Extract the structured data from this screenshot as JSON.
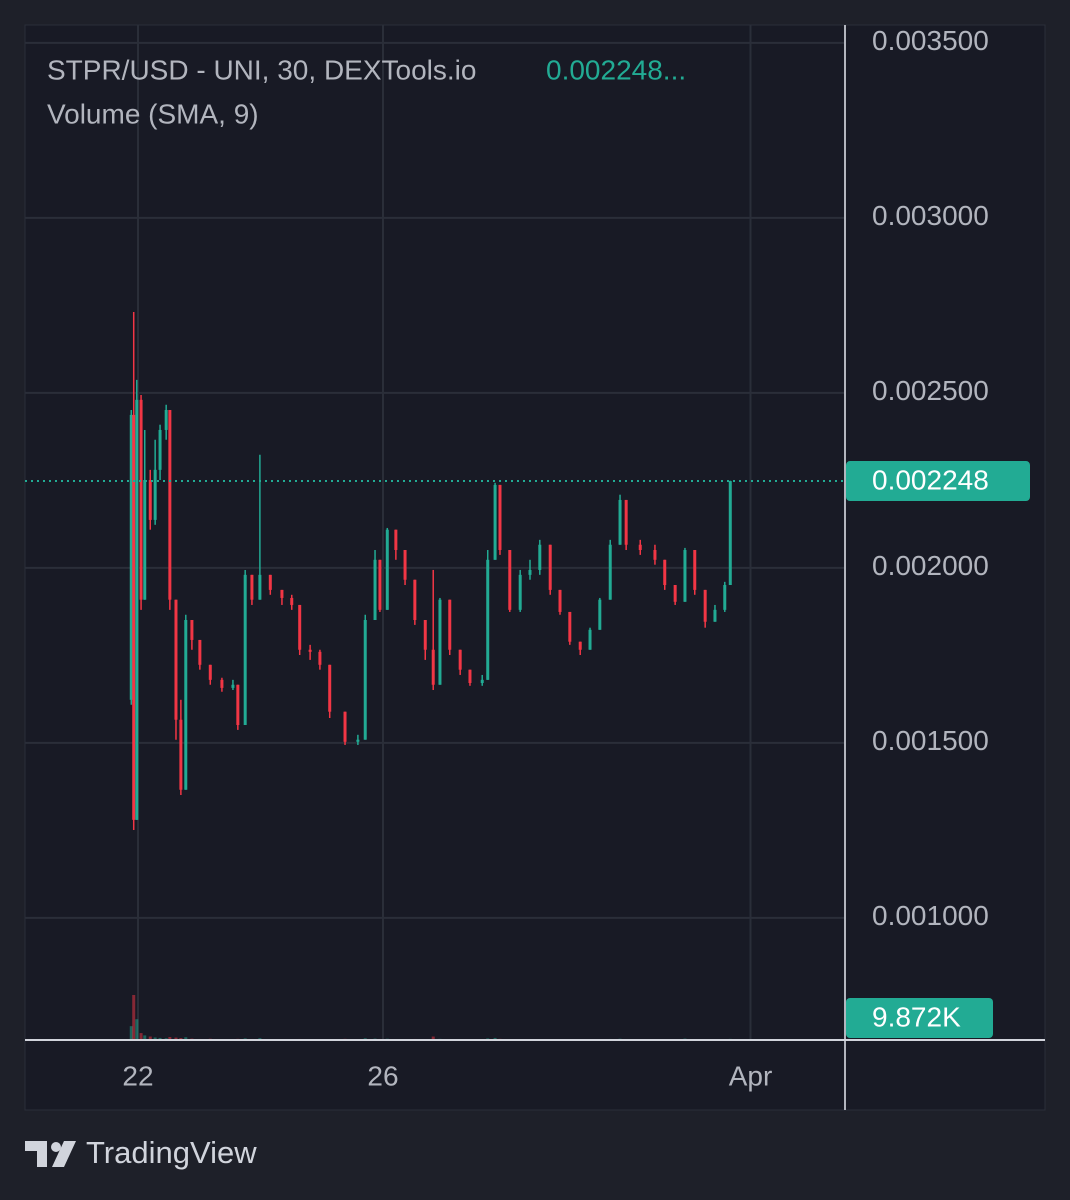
{
  "chart_data": {
    "type": "candlestick",
    "title": "STPR/USD - UNI, 30, DEXTools.io",
    "legend_price": "0.002248...",
    "subtitle": "Volume (SMA, 9)",
    "up_color": "#22ab94",
    "down_color": "#f23645",
    "grid": true,
    "xlim": [
      20.155,
      33.543
    ],
    "xticks": [
      22,
      26,
      {
        "value": 32,
        "label": "Apr"
      }
    ],
    "ylim": [
      0.000651,
      0.003551
    ],
    "yticks": [
      {
        "value": 0.0035,
        "label": "0.003500"
      },
      {
        "value": 0.003,
        "label": "0.003000"
      },
      {
        "value": 0.0025,
        "label": "0.002500"
      },
      {
        "value": 0.002,
        "label": "0.002000"
      },
      {
        "value": 0.0015,
        "label": "0.001500"
      },
      {
        "value": 0.001,
        "label": "0.001000"
      }
    ],
    "x": [
      21.89,
      21.93,
      21.98,
      22.05,
      22.11,
      22.2,
      22.28,
      22.36,
      22.46,
      22.52,
      22.62,
      22.7,
      22.78,
      22.88,
      23.01,
      23.18,
      23.37,
      23.55,
      23.63,
      23.75,
      23.86,
      23.99,
      24.16,
      24.35,
      24.51,
      24.64,
      24.81,
      24.97,
      25.13,
      25.38,
      25.59,
      25.71,
      25.87,
      25.95,
      26.07,
      26.21,
      26.36,
      26.52,
      26.69,
      26.82,
      26.93,
      27.09,
      27.26,
      27.42,
      27.62,
      27.71,
      27.83,
      27.91,
      28.07,
      28.24,
      28.4,
      28.56,
      28.73,
      28.89,
      29.05,
      29.22,
      29.38,
      29.54,
      29.71,
      29.87,
      29.97,
      30.2,
      30.44,
      30.6,
      30.77,
      30.93,
      31.09,
      31.26,
      31.42,
      31.58,
      31.67
    ],
    "open": [
      0.001623,
      0.002437,
      0.00128,
      0.00248,
      0.001909,
      0.002251,
      0.002137,
      0.00228,
      0.002394,
      0.002451,
      0.001909,
      0.001566,
      0.001366,
      0.001851,
      0.001794,
      0.001723,
      0.00168,
      0.001657,
      0.001666,
      0.001551,
      0.00198,
      0.001909,
      0.00198,
      0.001937,
      0.001914,
      0.001894,
      0.001766,
      0.00176,
      0.001723,
      0.001589,
      0.001503,
      0.001509,
      0.001851,
      0.002023,
      0.00188,
      0.002109,
      0.002051,
      0.001966,
      0.001851,
      0.001766,
      0.001666,
      0.001909,
      0.001766,
      0.001709,
      0.001671,
      0.00168,
      0.002023,
      0.002237,
      0.002051,
      0.00188,
      0.00198,
      0.001994,
      0.002066,
      0.001937,
      0.001874,
      0.001789,
      0.001766,
      0.001823,
      0.001909,
      0.002066,
      0.002194,
      0.002066,
      0.002051,
      0.002023,
      0.001951,
      0.001903,
      0.002051,
      0.001937,
      0.001846,
      0.00188,
      0.001951
    ],
    "high": [
      0.002451,
      0.002731,
      0.002537,
      0.002494,
      0.002394,
      0.00228,
      0.002366,
      0.002409,
      0.002466,
      0.002451,
      0.001909,
      0.001623,
      0.001866,
      0.001851,
      0.001794,
      0.001723,
      0.001686,
      0.00168,
      0.001666,
      0.001994,
      0.00198,
      0.002323,
      0.00198,
      0.001937,
      0.001923,
      0.001894,
      0.00178,
      0.001766,
      0.001723,
      0.001589,
      0.001523,
      0.001866,
      0.002051,
      0.002023,
      0.002114,
      0.002109,
      0.002051,
      0.001966,
      0.001851,
      0.001994,
      0.001914,
      0.001909,
      0.001766,
      0.001709,
      0.001694,
      0.002051,
      0.002243,
      0.002237,
      0.002051,
      0.001994,
      0.002023,
      0.00208,
      0.002066,
      0.001937,
      0.001874,
      0.001789,
      0.001829,
      0.001914,
      0.00208,
      0.002209,
      0.002194,
      0.00208,
      0.002066,
      0.002023,
      0.001951,
      0.002057,
      0.002051,
      0.001937,
      0.001894,
      0.00196,
      0.002249
    ],
    "low": [
      0.001609,
      0.001251,
      0.00128,
      0.00188,
      0.001909,
      0.002109,
      0.002123,
      0.002251,
      0.002366,
      0.00188,
      0.001509,
      0.001351,
      0.001366,
      0.001766,
      0.001709,
      0.001666,
      0.001646,
      0.001651,
      0.001537,
      0.001551,
      0.001894,
      0.001909,
      0.001923,
      0.001894,
      0.00188,
      0.001751,
      0.001737,
      0.001709,
      0.001571,
      0.001494,
      0.001494,
      0.001509,
      0.001851,
      0.001874,
      0.00188,
      0.002023,
      0.001951,
      0.001837,
      0.001737,
      0.001651,
      0.001666,
      0.001751,
      0.001694,
      0.001663,
      0.001663,
      0.00168,
      0.002023,
      0.002037,
      0.001874,
      0.001874,
      0.001966,
      0.00198,
      0.001923,
      0.001866,
      0.00178,
      0.001751,
      0.001766,
      0.001823,
      0.001909,
      0.002066,
      0.002051,
      0.002037,
      0.002009,
      0.001937,
      0.001894,
      0.001903,
      0.001923,
      0.001829,
      0.001846,
      0.001874,
      0.001951
    ],
    "close": [
      0.002437,
      0.00128,
      0.00248,
      0.001909,
      0.002251,
      0.002137,
      0.00228,
      0.002394,
      0.002451,
      0.001909,
      0.001566,
      0.001366,
      0.001851,
      0.001794,
      0.001723,
      0.00168,
      0.001657,
      0.001666,
      0.001551,
      0.00198,
      0.001909,
      0.00198,
      0.001937,
      0.001914,
      0.001894,
      0.001766,
      0.00176,
      0.001723,
      0.001589,
      0.001503,
      0.001509,
      0.001851,
      0.002023,
      0.00188,
      0.002109,
      0.002051,
      0.001966,
      0.001851,
      0.001766,
      0.001666,
      0.001909,
      0.001766,
      0.001709,
      0.001671,
      0.00168,
      0.002023,
      0.002237,
      0.002051,
      0.00188,
      0.00198,
      0.001994,
      0.002066,
      0.001937,
      0.001874,
      0.001789,
      0.001766,
      0.001823,
      0.001909,
      0.002066,
      0.002194,
      0.002066,
      0.002051,
      0.002023,
      0.001951,
      0.001903,
      0.002051,
      0.001937,
      0.001846,
      0.00188,
      0.001951,
      0.002248
    ],
    "volume": [
      120000,
      390000,
      180000,
      60000,
      40000,
      30000,
      22000,
      18000,
      15000,
      26000,
      21000,
      17000,
      24000,
      12000,
      9000,
      11000,
      8000,
      7000,
      10000,
      14000,
      9000,
      16000,
      8000,
      7000,
      6000,
      9000,
      7000,
      6000,
      8000,
      10000,
      7000,
      15000,
      12000,
      9000,
      11000,
      8000,
      7000,
      9000,
      8000,
      30000,
      10000,
      8000,
      7000,
      6000,
      6000,
      14000,
      18000,
      10000,
      8000,
      7000,
      6000,
      8000,
      7000,
      6000,
      7000,
      6000,
      5000,
      7000,
      9000,
      11000,
      8000,
      7000,
      6000,
      7000,
      6000,
      12000,
      8000,
      7000,
      6000,
      7000,
      9872
    ],
    "last_price": {
      "value": 0.002248,
      "label": "0.002248"
    },
    "last_volume": {
      "value": 9872,
      "label": "9.872K"
    }
  },
  "brand": "TradingView"
}
